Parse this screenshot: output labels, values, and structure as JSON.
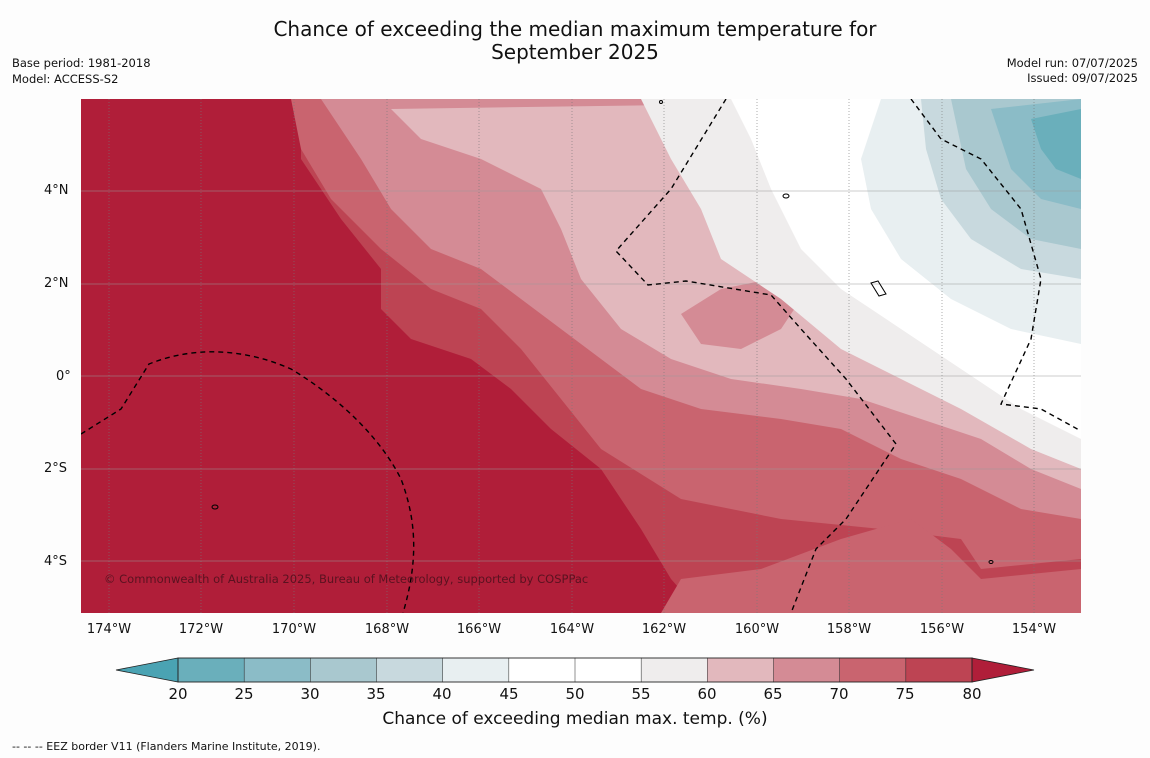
{
  "header": {
    "title_line1": "Chance of exceeding the median maximum temperature for",
    "title_line2": "September 2025",
    "base_period": "Base period: 1981-2018",
    "model": "Model: ACCESS-S2",
    "model_run": "Model run: 07/07/2025",
    "issued": "Issued: 09/07/2025"
  },
  "map": {
    "lat_labels": [
      "4°N",
      "2°N",
      "0°",
      "2°S",
      "4°S"
    ],
    "lon_labels": [
      "174°W",
      "172°W",
      "170°W",
      "168°W",
      "166°W",
      "164°W",
      "162°W",
      "160°W",
      "158°W",
      "156°W",
      "154°W"
    ],
    "copyright": "© Commonwealth of Australia 2025, Bureau of Meteorology, supported by COSPPac"
  },
  "legend": {
    "ticks": [
      "20",
      "25",
      "30",
      "35",
      "40",
      "45",
      "50",
      "55",
      "60",
      "65",
      "70",
      "75",
      "80"
    ],
    "colors": [
      "#6aafbb",
      "#8bbcc7",
      "#a9c8cf",
      "#c8d9de",
      "#e8eff1",
      "#ffffff",
      "#ffffff",
      "#efeded",
      "#e2b8bd",
      "#d48b95",
      "#c9646f",
      "#bd4453",
      "#b01e39"
    ],
    "below_color": "#4aa3b3",
    "above_color": "#b01e39",
    "label": "Chance of exceeding median max. temp. (%)"
  },
  "footer": {
    "eez_note": "--  --  -- EEZ border V11 (Flanders Marine Institute, 2019)."
  }
}
